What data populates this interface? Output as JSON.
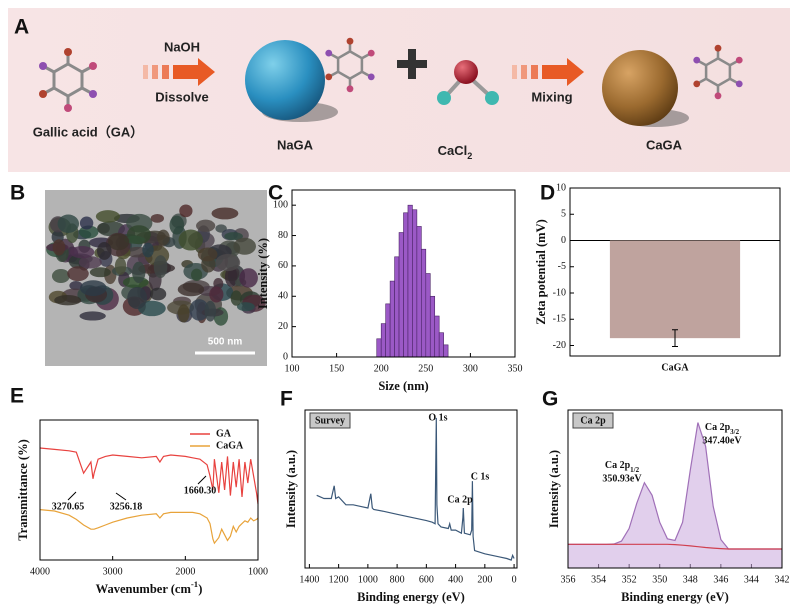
{
  "figure": {
    "panel_labels": [
      "A",
      "B",
      "C",
      "D",
      "E",
      "F",
      "G"
    ],
    "scheme": {
      "gallic_acid": "Gallic acid（GA）",
      "naoh": "NaOH",
      "dissolve": "Dissolve",
      "naga": "NaGA",
      "cacl2": {
        "main": "CaCl",
        "sub": "2"
      },
      "mixing": "Mixing",
      "caga": "CaGA"
    },
    "tem": {
      "scale_bar": "500 nm"
    }
  },
  "chart_data": [
    {
      "type": "histogram",
      "xlabel": "Size (nm)",
      "ylabel": "Intensity (%)",
      "color": "#9b59c6",
      "edge": "#4a2466",
      "bins": [
        195,
        200,
        205,
        210,
        215,
        220,
        225,
        230,
        235,
        240,
        245,
        250,
        255,
        260,
        265,
        270,
        275
      ],
      "counts": [
        12,
        22,
        35,
        50,
        66,
        82,
        95,
        100,
        97,
        86,
        71,
        55,
        40,
        27,
        16,
        8
      ],
      "xlim": [
        100,
        350
      ],
      "xticks": [
        100,
        150,
        200,
        250,
        300,
        350
      ],
      "ylim": [
        0,
        110
      ],
      "yticks": [
        0,
        20,
        40,
        60,
        80,
        100
      ]
    },
    {
      "type": "bar",
      "ylabel": "Zeta potential (mV)",
      "categories": [
        "CaGA"
      ],
      "values": [
        -18.6
      ],
      "errors": [
        1.6
      ],
      "color": "#bfa39e",
      "ylim": [
        -22,
        10
      ],
      "yticks": [
        10,
        5,
        0,
        -5,
        -10,
        -15,
        -20
      ]
    },
    {
      "type": "line",
      "xlabel": {
        "main": "Wavenumber (cm",
        "sup": "-1",
        "end": ")"
      },
      "ylabel": "Transmittance (%)",
      "x": [
        4000,
        3800,
        3600,
        3500,
        3400,
        3300,
        3270,
        3256,
        3200,
        3100,
        3000,
        2800,
        2600,
        2400,
        2350,
        2300,
        2200,
        2000,
        1900,
        1800,
        1700,
        1660,
        1620,
        1600,
        1540,
        1500,
        1460,
        1420,
        1380,
        1340,
        1300,
        1260,
        1220,
        1180,
        1140,
        1100,
        1060,
        1020,
        1000
      ],
      "series": [
        {
          "name": "GA",
          "color": "#e8423f",
          "values": [
            80,
            79,
            78,
            77,
            62,
            70,
            58,
            62,
            72,
            74,
            75,
            74,
            73,
            74,
            70,
            74,
            75,
            74,
            73,
            72,
            68,
            60,
            50,
            72,
            48,
            70,
            50,
            74,
            46,
            70,
            52,
            72,
            45,
            70,
            55,
            72,
            60,
            48,
            40
          ]
        },
        {
          "name": "CaGA",
          "color": "#e8a33a",
          "values": [
            36,
            35,
            32,
            29,
            25,
            22,
            22,
            22,
            23,
            25,
            27,
            30,
            32,
            33,
            30,
            33,
            34,
            34,
            34,
            33,
            30,
            26,
            15,
            12,
            16,
            22,
            18,
            14,
            17,
            24,
            20,
            24,
            26,
            28,
            27,
            30,
            28,
            29,
            30
          ]
        }
      ],
      "annotations": [
        "3270.65",
        "3256.18",
        "1660.30"
      ],
      "xlim": [
        4000,
        1000
      ],
      "xticks": [
        4000,
        3000,
        2000,
        1000
      ],
      "ylim": [
        0,
        100
      ],
      "legend": "upper right"
    },
    {
      "type": "line",
      "xlabel": "Binding energy (eV)",
      "ylabel": "Intensity (a.u.)",
      "panel_tag": "Survey",
      "x": [
        1350,
        1300,
        1250,
        1230,
        1220,
        1200,
        1150,
        1100,
        1050,
        1000,
        980,
        970,
        960,
        900,
        800,
        700,
        600,
        560,
        540,
        532,
        528,
        520,
        500,
        450,
        440,
        430,
        400,
        360,
        350,
        347,
        340,
        300,
        290,
        285,
        280,
        270,
        200,
        100,
        50,
        20,
        10,
        0
      ],
      "series": [
        {
          "color": "#3b5878",
          "values": [
            46,
            44,
            44,
            52,
            44,
            45,
            40,
            40,
            39,
            38,
            47,
            38,
            37,
            36,
            34,
            32,
            30,
            29,
            28,
            95,
            40,
            28,
            26,
            25,
            28,
            24,
            24,
            22,
            32,
            38,
            22,
            21,
            24,
            55,
            20,
            11,
            9,
            7,
            6,
            5,
            8,
            6
          ]
        }
      ],
      "annotations": [
        "O 1s",
        "C 1s",
        "Ca 2p"
      ],
      "xlim": [
        1430,
        -20
      ],
      "xticks": [
        1400,
        1200,
        1000,
        800,
        600,
        400,
        200,
        0
      ],
      "ylim": [
        0,
        100
      ]
    },
    {
      "type": "line",
      "xlabel": "Binding energy (eV)",
      "ylabel": "Intensity (a.u.)",
      "panel_tag": "Ca 2p",
      "x": [
        356,
        355.5,
        355,
        354.5,
        354,
        353.5,
        353,
        352.5,
        352,
        351.5,
        351,
        350.5,
        350,
        349.5,
        349,
        348.5,
        348,
        347.5,
        347,
        346.5,
        346,
        345.5,
        345,
        344.5,
        344,
        343.5,
        343,
        342.5,
        342
      ],
      "series": [
        {
          "color": "#a070b8",
          "fill": "#c9a8dc",
          "values": [
            15,
            15,
            15,
            15,
            15,
            15,
            15.2,
            17,
            25,
            41,
            54,
            46,
            29,
            18.5,
            17.5,
            29,
            62,
            92,
            77,
            39,
            18,
            12,
            12,
            12,
            12,
            12,
            12,
            12,
            12
          ]
        },
        {
          "color": "#d04050",
          "values": [
            15,
            15,
            15,
            15,
            15,
            15,
            15,
            15,
            15,
            15,
            15,
            15,
            15,
            15,
            14.8,
            14.4,
            14,
            13.5,
            13,
            12.6,
            12.3,
            12,
            12,
            12,
            12,
            12,
            12,
            12,
            12
          ]
        }
      ],
      "annotations": [
        {
          "main": "Ca 2p",
          "sub": "1/2",
          "line2": "350.93eV"
        },
        {
          "main": "Ca 2p",
          "sub": "3/2",
          "line2": "347.40eV"
        }
      ],
      "xlim": [
        356,
        342
      ],
      "xticks": [
        356,
        354,
        352,
        350,
        348,
        346,
        344,
        342
      ],
      "ylim": [
        0,
        100
      ]
    }
  ]
}
